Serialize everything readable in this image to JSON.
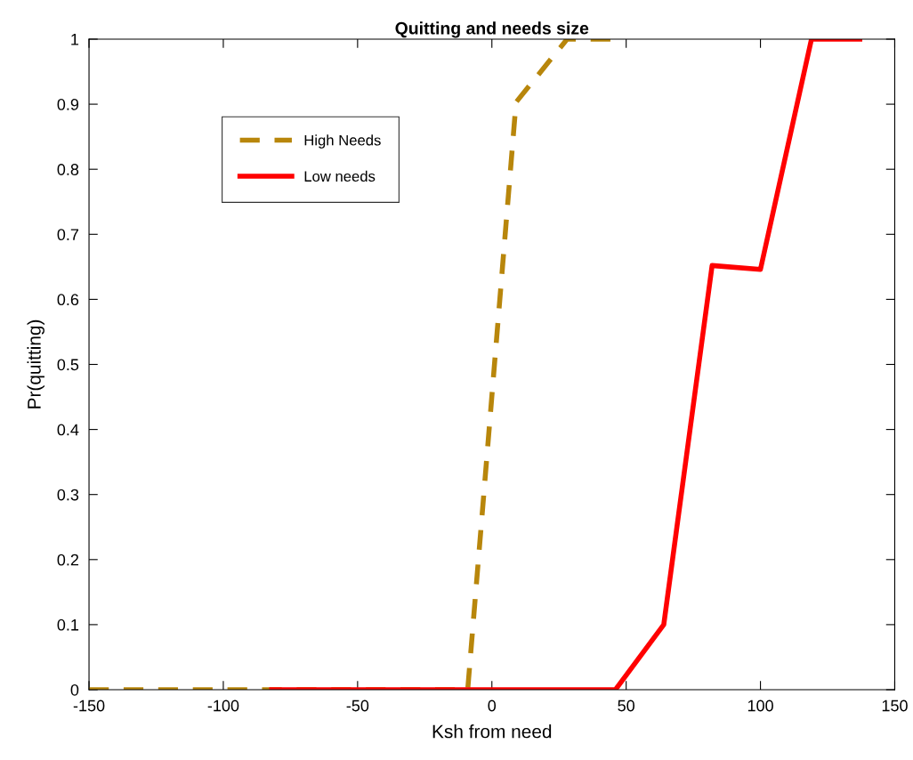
{
  "chart_data": {
    "type": "line",
    "title": "Quitting and needs size",
    "xlabel": "Ksh from need",
    "ylabel": "Pr(quitting)",
    "xlim": [
      -150,
      150
    ],
    "xticks": [
      -150,
      -100,
      -50,
      0,
      50,
      100,
      150
    ],
    "ylim": [
      0,
      1
    ],
    "yticks": [
      0,
      0.1,
      0.2,
      0.3,
      0.4,
      0.5,
      0.6,
      0.7,
      0.8,
      0.9,
      1
    ],
    "grid": false,
    "legend": "top left",
    "marker": "none",
    "series": [
      {
        "name": "High Needs",
        "color": "#b8860b",
        "line_style": "dashed",
        "x": [
          -150,
          -9,
          9,
          28,
          46
        ],
        "values": [
          0,
          0,
          0.903,
          1,
          1
        ]
      },
      {
        "name": "Low needs",
        "color": "#ff0000",
        "line_style": "solid",
        "x": [
          -82,
          46,
          64,
          82,
          100,
          119,
          137
        ],
        "values": [
          0,
          0,
          0.1,
          0.652,
          0.646,
          1,
          1
        ]
      }
    ]
  }
}
